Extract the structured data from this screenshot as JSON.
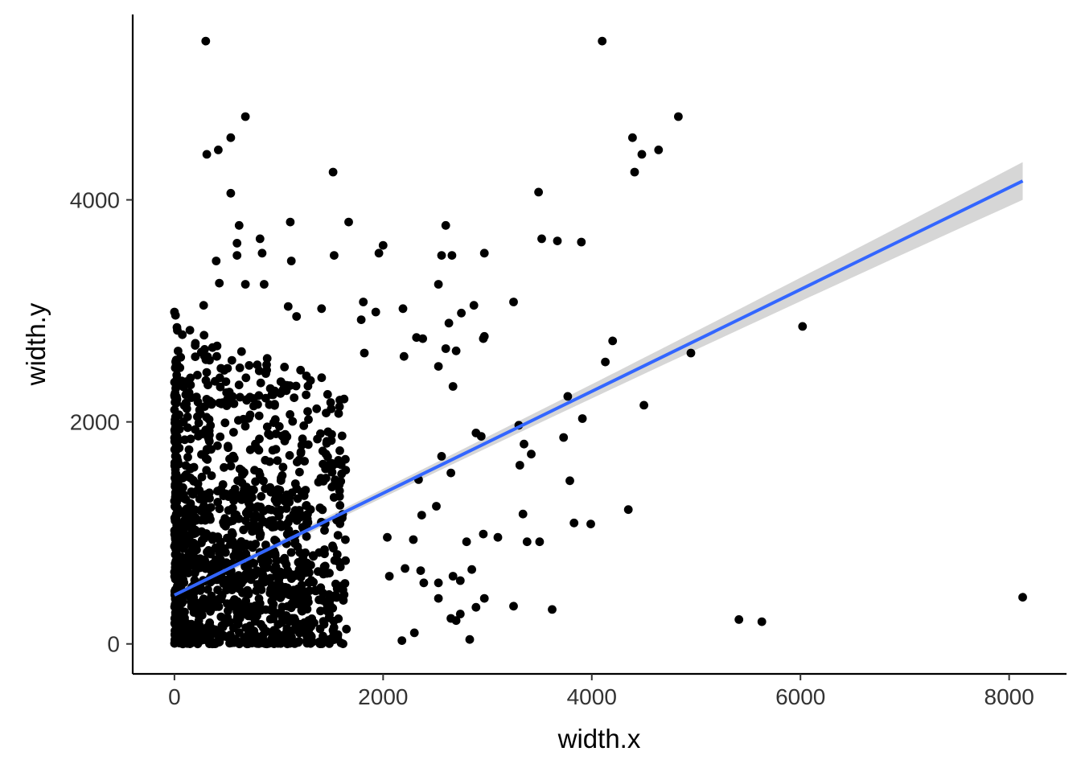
{
  "chart_data": {
    "type": "scatter",
    "xlabel": "width.x",
    "ylabel": "width.y",
    "xlim": [
      -400,
      8550
    ],
    "ylim": [
      -270,
      5670
    ],
    "x_ticks": [
      0,
      2000,
      4000,
      6000,
      8000
    ],
    "y_ticks": [
      0,
      2000,
      4000
    ],
    "x_tick_labels": [
      "0",
      "2000",
      "4000",
      "6000",
      "8000"
    ],
    "y_tick_labels": [
      "0",
      "2000",
      "4000"
    ],
    "grid": false,
    "legend": "none",
    "point_color": "#000000",
    "trend_color": "#3366FF",
    "ribbon_color": "#cccccc",
    "series": [
      {
        "values": [
          [
            300,
            5430
          ],
          [
            4100,
            5430
          ],
          [
            680,
            4750
          ],
          [
            4830,
            4750
          ],
          [
            540,
            4560
          ],
          [
            4390,
            4560
          ],
          [
            420,
            4450
          ],
          [
            310,
            4410
          ],
          [
            4640,
            4450
          ],
          [
            4480,
            4410
          ],
          [
            1520,
            4250
          ],
          [
            4410,
            4250
          ],
          [
            3490,
            4070
          ],
          [
            540,
            4060
          ],
          [
            1110,
            3800
          ],
          [
            1670,
            3800
          ],
          [
            620,
            3770
          ],
          [
            2600,
            3770
          ],
          [
            3520,
            3650
          ],
          [
            3670,
            3630
          ],
          [
            3900,
            3620
          ],
          [
            820,
            3650
          ],
          [
            600,
            3610
          ],
          [
            2000,
            3590
          ],
          [
            1960,
            3520
          ],
          [
            2970,
            3520
          ],
          [
            2560,
            3500
          ],
          [
            2660,
            3500
          ],
          [
            1530,
            3500
          ],
          [
            600,
            3500
          ],
          [
            840,
            3520
          ],
          [
            400,
            3450
          ],
          [
            1120,
            3450
          ],
          [
            430,
            3250
          ],
          [
            680,
            3240
          ],
          [
            860,
            3240
          ],
          [
            2530,
            3240
          ],
          [
            3250,
            3080
          ],
          [
            1810,
            3080
          ],
          [
            280,
            3050
          ],
          [
            1090,
            3040
          ],
          [
            2190,
            3020
          ],
          [
            2870,
            3050
          ],
          [
            1410,
            3020
          ],
          [
            1930,
            2990
          ],
          [
            0,
            2990
          ],
          [
            10,
            2960
          ],
          [
            2750,
            2980
          ],
          [
            2630,
            2890
          ],
          [
            1790,
            2920
          ],
          [
            1170,
            2950
          ],
          [
            2970,
            2770
          ],
          [
            2960,
            2750
          ],
          [
            6020,
            2860
          ],
          [
            4200,
            2730
          ],
          [
            2380,
            2750
          ],
          [
            2320,
            2760
          ],
          [
            4950,
            2620
          ],
          [
            4130,
            2540
          ],
          [
            2700,
            2640
          ],
          [
            2600,
            2660
          ],
          [
            2530,
            2500
          ],
          [
            2670,
            2320
          ],
          [
            2200,
            2590
          ],
          [
            1820,
            2620
          ],
          [
            3770,
            2230
          ],
          [
            4500,
            2150
          ],
          [
            3910,
            2030
          ],
          [
            3300,
            1970
          ],
          [
            2890,
            1900
          ],
          [
            2940,
            1870
          ],
          [
            3730,
            1860
          ],
          [
            3350,
            1800
          ],
          [
            3420,
            1710
          ],
          [
            3310,
            1610
          ],
          [
            2560,
            1690
          ],
          [
            2650,
            1540
          ],
          [
            3790,
            1470
          ],
          [
            2340,
            1480
          ],
          [
            4350,
            1210
          ],
          [
            3340,
            1170
          ],
          [
            2510,
            1240
          ],
          [
            2370,
            1160
          ],
          [
            3830,
            1090
          ],
          [
            3990,
            1080
          ],
          [
            2960,
            990
          ],
          [
            3100,
            960
          ],
          [
            3500,
            920
          ],
          [
            3380,
            920
          ],
          [
            2800,
            920
          ],
          [
            2530,
            550
          ],
          [
            2670,
            610
          ],
          [
            2850,
            670
          ],
          [
            2740,
            570
          ],
          [
            2530,
            410
          ],
          [
            2970,
            410
          ],
          [
            3250,
            340
          ],
          [
            2890,
            330
          ],
          [
            2740,
            270
          ],
          [
            2650,
            230
          ],
          [
            3620,
            310
          ],
          [
            2700,
            210
          ],
          [
            2830,
            40
          ],
          [
            2180,
            30
          ],
          [
            2300,
            100
          ],
          [
            5410,
            220
          ],
          [
            5630,
            200
          ],
          [
            8130,
            420
          ],
          [
            2360,
            660
          ],
          [
            2040,
            960
          ],
          [
            2290,
            940
          ],
          [
            2210,
            680
          ],
          [
            2390,
            550
          ],
          [
            2060,
            610
          ]
        ]
      }
    ],
    "trend": {
      "method": "lm",
      "x": [
        0,
        8130
      ],
      "y": [
        440,
        4170
      ],
      "ribbon_halfwidth": [
        30,
        170
      ]
    }
  }
}
